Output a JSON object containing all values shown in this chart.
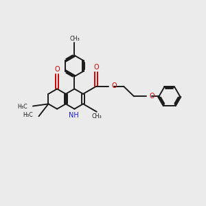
{
  "background_color": "#ebebeb",
  "bond_color": "#1a1a1a",
  "oxygen_color": "#cc0000",
  "nitrogen_color": "#1a1acc",
  "figsize": [
    3.0,
    3.0
  ],
  "dpi": 100,
  "xlim": [
    0,
    10
  ],
  "ylim": [
    0,
    10
  ]
}
